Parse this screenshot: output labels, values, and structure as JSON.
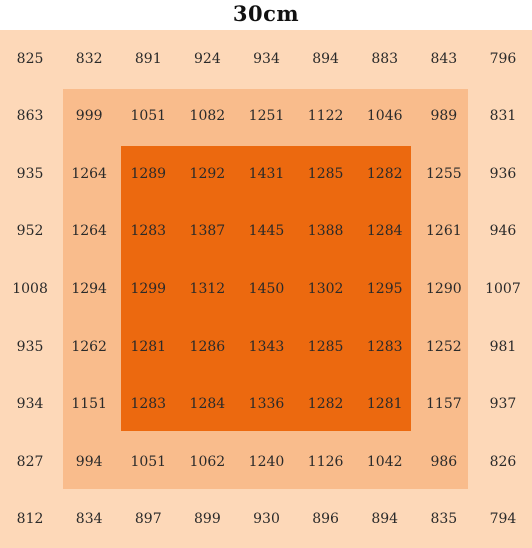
{
  "title": "30cm",
  "chart_data": {
    "type": "heatmap",
    "title": "30cm",
    "rows": [
      [
        "825",
        "832",
        "891",
        "924",
        "934",
        "894",
        "883",
        "843",
        "796"
      ],
      [
        "863",
        "999",
        "1051",
        "1082",
        "1251",
        "1122",
        "1046",
        "989",
        "831"
      ],
      [
        "935",
        "1264",
        "1289",
        "1292",
        "1431",
        "1285",
        "1282",
        "1255",
        "936"
      ],
      [
        "952",
        "1264",
        "1283",
        "1387",
        "1445",
        "1388",
        "1284",
        "1261",
        "946"
      ],
      [
        "1008",
        "1294",
        "1299",
        "1312",
        "1450",
        "1302",
        "1295",
        "1290",
        "1007"
      ],
      [
        "935",
        "1262",
        "1281",
        "1286",
        "1343",
        "1285",
        "1283",
        "1252",
        "981"
      ],
      [
        "934",
        "1151",
        "1283",
        "1284",
        "1336",
        "1282",
        "1281",
        "1157",
        "937"
      ],
      [
        "827",
        "994",
        "1051",
        "1062",
        "1240",
        "1126",
        "1042",
        "986",
        "826"
      ],
      [
        "812",
        "834",
        "897",
        "899",
        "930",
        "896",
        "894",
        "835",
        "794"
      ]
    ],
    "zones": [
      {
        "rows": [
          0,
          8
        ],
        "cols": [
          0,
          8
        ],
        "color": "#fdd8b8"
      },
      {
        "rows": [
          1,
          7
        ],
        "cols": [
          1,
          7
        ],
        "color": "#f9bc8c"
      },
      {
        "rows": [
          2,
          6
        ],
        "cols": [
          2,
          6
        ],
        "color": "#ec690f"
      }
    ]
  }
}
